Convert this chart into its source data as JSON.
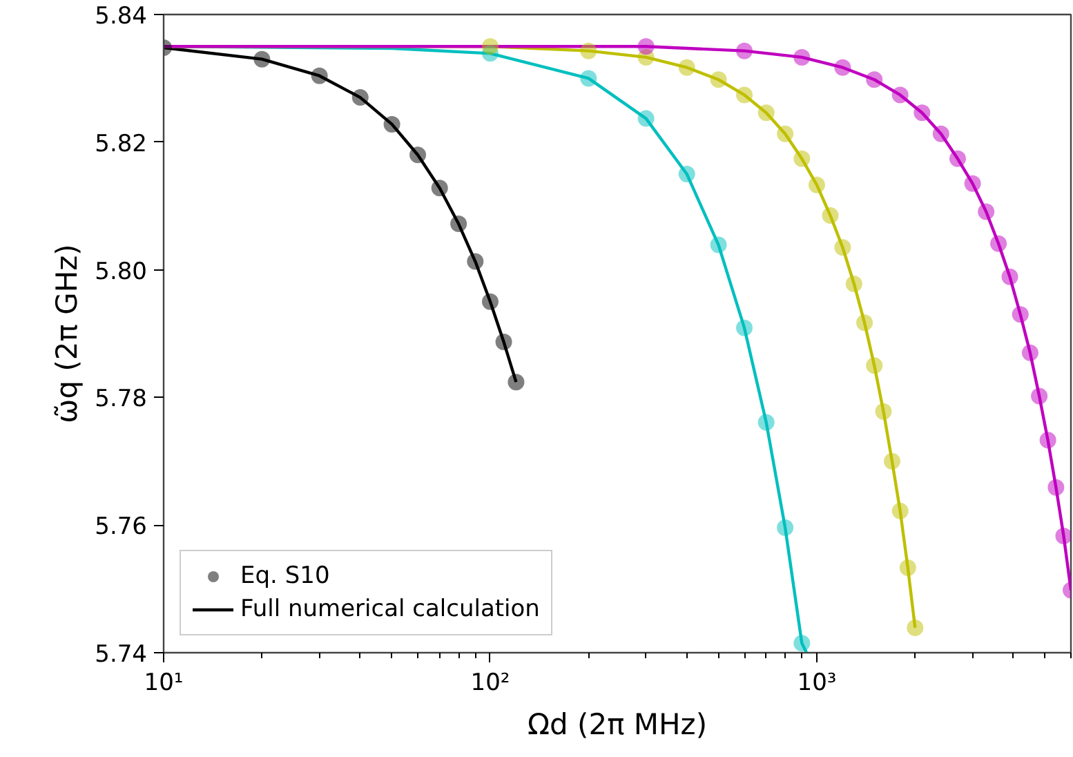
{
  "chart_data": {
    "type": "scatter",
    "xlabel": "Ωd (2π MHz)",
    "ylabel": "ω̃q (2π GHz)",
    "log": "x",
    "grid": false,
    "legend": "bottom left",
    "xlim": [
      10,
      6000
    ],
    "ylim": [
      5.74,
      5.84
    ],
    "xticks": [
      {
        "value": 10,
        "label": "10¹"
      },
      {
        "value": 100,
        "label": "10²"
      },
      {
        "value": 1000,
        "label": "10³"
      }
    ],
    "yticks": [
      {
        "value": 5.74,
        "label": "5.74"
      },
      {
        "value": 5.76,
        "label": "5.76"
      },
      {
        "value": 5.78,
        "label": "5.78"
      },
      {
        "value": 5.8,
        "label": "5.80"
      },
      {
        "value": 5.82,
        "label": "5.82"
      },
      {
        "value": 5.84,
        "label": "5.84"
      }
    ],
    "series": [
      {
        "type": "line",
        "name": "Full numerical calculation",
        "color": "#000000",
        "x": [
          10,
          20,
          30,
          40,
          50,
          60,
          70,
          80,
          90,
          100,
          110,
          120
        ],
        "values": [
          5.8348,
          5.833,
          5.8304,
          5.827,
          5.8228,
          5.818,
          5.8128,
          5.8072,
          5.8013,
          5.795,
          5.7887,
          5.7824
        ]
      },
      {
        "type": "line",
        "color": "#00bfbf",
        "x": [
          10,
          50,
          100,
          200,
          300,
          400,
          500,
          600,
          700,
          800,
          900,
          930
        ],
        "values": [
          5.835,
          5.8347,
          5.8339,
          5.83,
          5.8237,
          5.815,
          5.8039,
          5.7909,
          5.7761,
          5.7596,
          5.7415,
          5.74
        ]
      },
      {
        "type": "line",
        "color": "#bfbf00",
        "x": [
          10,
          50,
          100,
          200,
          300,
          400,
          500,
          600,
          700,
          800,
          900,
          1000,
          1100,
          1200,
          1300,
          1400,
          1500,
          1600,
          1700,
          1800,
          1900,
          2000
        ],
        "values": [
          5.835,
          5.835,
          5.835,
          5.8343,
          5.8333,
          5.8317,
          5.8298,
          5.8274,
          5.8246,
          5.8213,
          5.8174,
          5.8133,
          5.8085,
          5.8035,
          5.7978,
          5.7917,
          5.785,
          5.7778,
          5.77,
          5.7622,
          5.7533,
          5.7439
        ]
      },
      {
        "type": "line",
        "color": "#bf00bf",
        "x": [
          10,
          100,
          300,
          600,
          900,
          1200,
          1500,
          1800,
          2100,
          2400,
          2700,
          3000,
          3300,
          3600,
          3900,
          4200,
          4500,
          4800,
          5100,
          5400,
          5700,
          6000
        ],
        "values": [
          5.835,
          5.835,
          5.835,
          5.8343,
          5.8333,
          5.8317,
          5.8298,
          5.8274,
          5.8246,
          5.8213,
          5.8174,
          5.8135,
          5.8091,
          5.8041,
          5.7989,
          5.793,
          5.787,
          5.7802,
          5.7733,
          5.7659,
          5.7583,
          5.7498
        ]
      },
      {
        "name": "Eq. S10",
        "marker": "circle",
        "color": "#000000",
        "x": [
          10,
          20,
          30,
          40,
          50,
          60,
          70,
          80,
          90,
          100,
          110,
          120
        ],
        "values": [
          5.8348,
          5.833,
          5.8304,
          5.827,
          5.8228,
          5.818,
          5.8128,
          5.8072,
          5.8013,
          5.795,
          5.7887,
          5.7824
        ]
      },
      {
        "marker": "circle",
        "color": "#00bfbf",
        "x": [
          100,
          200,
          300,
          400,
          500,
          600,
          700,
          800,
          900
        ],
        "values": [
          5.8339,
          5.83,
          5.8237,
          5.815,
          5.8039,
          5.7909,
          5.7761,
          5.7596,
          5.7415
        ]
      },
      {
        "marker": "circle",
        "color": "#bfbf00",
        "x": [
          100,
          200,
          300,
          400,
          500,
          600,
          700,
          800,
          900,
          1000,
          1100,
          1200,
          1300,
          1400,
          1500,
          1600,
          1700,
          1800,
          1900,
          2000
        ],
        "values": [
          5.835,
          5.8343,
          5.8333,
          5.8317,
          5.8298,
          5.8274,
          5.8246,
          5.8213,
          5.8174,
          5.8133,
          5.8085,
          5.8035,
          5.7978,
          5.7917,
          5.785,
          5.7778,
          5.77,
          5.7622,
          5.7533,
          5.7439
        ]
      },
      {
        "marker": "circle",
        "color": "#bf00bf",
        "x": [
          300,
          600,
          900,
          1200,
          1500,
          1800,
          2100,
          2400,
          2700,
          3000,
          3300,
          3600,
          3900,
          4200,
          4500,
          4800,
          5100,
          5400,
          5700,
          6000
        ],
        "values": [
          5.835,
          5.8343,
          5.8333,
          5.8317,
          5.8298,
          5.8274,
          5.8246,
          5.8213,
          5.8174,
          5.8135,
          5.8091,
          5.8041,
          5.7989,
          5.793,
          5.787,
          5.7802,
          5.7733,
          5.7659,
          5.7583,
          5.7498
        ]
      }
    ]
  }
}
